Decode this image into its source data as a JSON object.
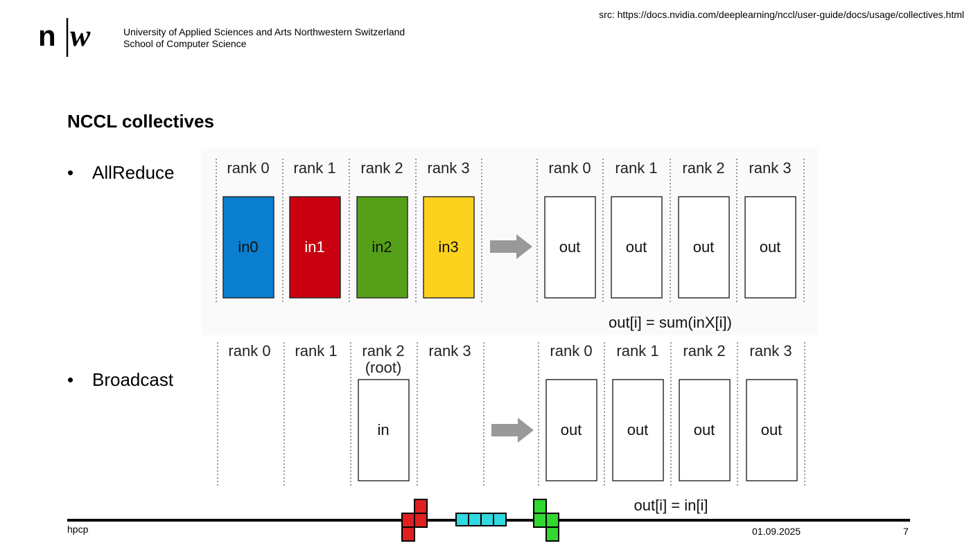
{
  "header": {
    "source_note": "src: https://docs.nvidia.com/deeplearning/nccl/user-guide/docs/usage/collectives.html",
    "logo_text": "n|w",
    "university_line1": "University of Applied Sciences and Arts Northwestern Switzerland",
    "university_line2": "School of Computer Science"
  },
  "slide": {
    "title": "NCCL collectives",
    "bullets": [
      "AllReduce",
      "Broadcast"
    ]
  },
  "allreduce": {
    "rank_labels_in": [
      "rank 0",
      "rank 1",
      "rank 2",
      "rank 3"
    ],
    "rank_labels_out": [
      "rank 0",
      "rank 1",
      "rank 2",
      "rank 3"
    ],
    "inputs": [
      {
        "label": "in0",
        "color": "#0a7fd0"
      },
      {
        "label": "in1",
        "color": "#c90010"
      },
      {
        "label": "in2",
        "color": "#55a018"
      },
      {
        "label": "in3",
        "color": "#fdd21f"
      }
    ],
    "outputs": [
      "out",
      "out",
      "out",
      "out"
    ],
    "formula": "out[i] = sum(inX[i])"
  },
  "broadcast": {
    "rank_labels_in": [
      "rank 0",
      "rank 1",
      "rank 2",
      "rank 3"
    ],
    "root_note": "(root)",
    "rank_labels_out": [
      "rank 0",
      "rank 1",
      "rank 2",
      "rank 3"
    ],
    "input": "in",
    "outputs": [
      "out",
      "out",
      "out",
      "out"
    ],
    "formula": "out[i] = in[i]"
  },
  "footer": {
    "left": "hpcp",
    "date": "01.09.2025",
    "page": "7"
  },
  "colors": {
    "arrow": "#999999",
    "panel_bg": "#fafafa",
    "tetris_red": "#e02020",
    "tetris_cyan": "#30d8e0",
    "tetris_green": "#30d830"
  }
}
